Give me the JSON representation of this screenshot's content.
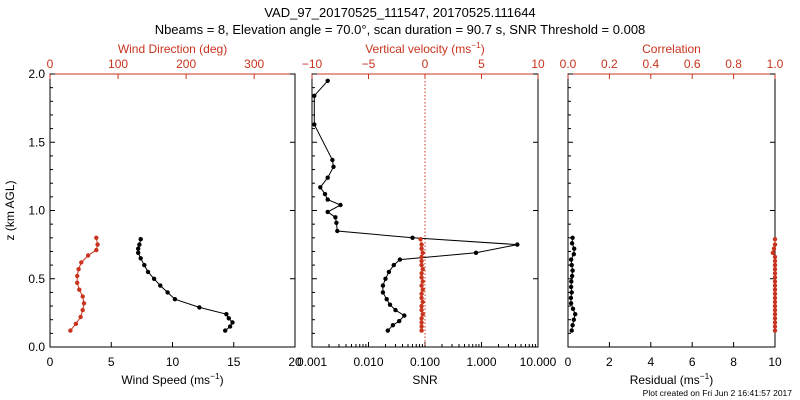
{
  "title_line1": "VAD_97_20170525_111547, 20170525.111644",
  "title_line2": "Nbeams = 8, Elevation angle = 70.0°, scan duration = 90.7 s, SNR Threshold = 0.008",
  "footer": "Plot created on Fri Jun  2 16:41:57 2017",
  "colors": {
    "primary": "#000000",
    "accent": "#c8341e"
  },
  "chart_data": [
    {
      "type": "line",
      "panel": "wind",
      "ylabel": "z (km AGL)",
      "ylim": [
        0,
        2
      ],
      "yticks": [
        "0.0",
        "0.5",
        "1.0",
        "1.5",
        "2.0"
      ],
      "bottom_axis": {
        "label": "Wind Speed",
        "unit": "(ms",
        "sup": "−1",
        "unit_close": ")",
        "lim": [
          0,
          20
        ],
        "ticks": [
          "0",
          "5",
          "10",
          "15",
          "20"
        ]
      },
      "top_axis": {
        "label": "Wind Direction (deg)",
        "lim": [
          0,
          360
        ],
        "ticks": [
          "0",
          "100",
          "200",
          "300"
        ]
      },
      "series": [
        {
          "axis": "bottom",
          "color": "#000000",
          "z": [
            0.12,
            0.15,
            0.18,
            0.21,
            0.24,
            0.29,
            0.35,
            0.4,
            0.45,
            0.5,
            0.55,
            0.6,
            0.65,
            0.69,
            0.72,
            0.75,
            0.79
          ],
          "values": [
            14.3,
            14.7,
            14.9,
            14.6,
            14.4,
            12.2,
            10.2,
            9.6,
            9.0,
            8.5,
            8.0,
            7.7,
            7.4,
            7.2,
            7.2,
            7.3,
            7.4
          ]
        },
        {
          "axis": "top",
          "color": "#c8341e",
          "z": [
            0.12,
            0.17,
            0.22,
            0.27,
            0.32,
            0.37,
            0.42,
            0.47,
            0.52,
            0.57,
            0.62,
            0.67,
            0.71,
            0.75,
            0.8
          ],
          "values": [
            30,
            38,
            45,
            48,
            50,
            48,
            43,
            40,
            40,
            42,
            46,
            56,
            68,
            70,
            68
          ]
        }
      ]
    },
    {
      "type": "line",
      "panel": "snr",
      "bottom_axis": {
        "label": "SNR",
        "scale": "log",
        "lim": [
          0.001,
          10
        ],
        "ticks": [
          "0.001",
          "0.010",
          "0.100",
          "1.000",
          "10.000"
        ]
      },
      "top_axis": {
        "label": "Vertical velocity (ms",
        "sup": "−1",
        "unit_close": ")",
        "lim": [
          -10,
          10
        ],
        "ticks": [
          "−10",
          "−5",
          "0",
          "5",
          "10"
        ]
      },
      "zero_line_top": 0,
      "series": [
        {
          "axis": "bottom",
          "color": "#000000",
          "z": [
            0.12,
            0.16,
            0.19,
            0.23,
            0.27,
            0.31,
            0.35,
            0.4,
            0.45,
            0.5,
            0.55,
            0.6,
            0.64,
            0.69,
            0.75,
            0.8,
            0.85,
            0.91,
            0.95,
            0.99,
            1.04,
            1.08,
            1.12,
            1.17,
            1.24,
            1.32,
            1.37,
            1.63,
            1.84,
            1.95
          ],
          "values": [
            0.022,
            0.027,
            0.035,
            0.043,
            0.03,
            0.024,
            0.021,
            0.018,
            0.018,
            0.02,
            0.023,
            0.028,
            0.036,
            0.8,
            4.3,
            0.06,
            0.0028,
            0.0027,
            0.0026,
            0.0019,
            0.0032,
            0.0019,
            0.0017,
            0.0014,
            0.0019,
            0.0024,
            0.0023,
            0.0011,
            0.0011,
            0.0019
          ]
        },
        {
          "axis": "top",
          "color": "#c8341e",
          "z": [
            0.12,
            0.15,
            0.18,
            0.21,
            0.24,
            0.27,
            0.3,
            0.33,
            0.36,
            0.39,
            0.42,
            0.45,
            0.48,
            0.51,
            0.54,
            0.57,
            0.6,
            0.63,
            0.66,
            0.69,
            0.72,
            0.75,
            0.79
          ],
          "values": [
            -0.3,
            -0.3,
            -0.3,
            -0.3,
            -0.2,
            -0.3,
            -0.3,
            -0.2,
            -0.3,
            -0.3,
            -0.2,
            -0.3,
            -0.2,
            -0.3,
            -0.3,
            -0.2,
            -0.3,
            -0.3,
            -0.3,
            -0.2,
            -0.3,
            -0.3,
            -0.4
          ]
        }
      ]
    },
    {
      "type": "line",
      "panel": "residual",
      "bottom_axis": {
        "label": "Residual",
        "unit": "(ms",
        "sup": "−1",
        "unit_close": ")",
        "lim": [
          0,
          10
        ],
        "ticks": [
          "0",
          "2",
          "4",
          "6",
          "8",
          "10"
        ]
      },
      "top_axis": {
        "label": "Correlation",
        "lim": [
          0,
          1
        ],
        "ticks": [
          "0.0",
          "0.2",
          "0.4",
          "0.6",
          "0.8",
          "1.0"
        ]
      },
      "series": [
        {
          "axis": "bottom",
          "color": "#000000",
          "z": [
            0.12,
            0.16,
            0.2,
            0.24,
            0.28,
            0.32,
            0.36,
            0.4,
            0.44,
            0.48,
            0.52,
            0.56,
            0.6,
            0.64,
            0.68,
            0.72,
            0.76,
            0.8
          ],
          "values": [
            0.18,
            0.22,
            0.28,
            0.35,
            0.24,
            0.15,
            0.14,
            0.18,
            0.15,
            0.16,
            0.2,
            0.22,
            0.18,
            0.15,
            0.28,
            0.3,
            0.2,
            0.22
          ]
        },
        {
          "axis": "top",
          "color": "#c8341e",
          "z": [
            0.12,
            0.15,
            0.18,
            0.21,
            0.24,
            0.27,
            0.3,
            0.33,
            0.36,
            0.39,
            0.42,
            0.45,
            0.48,
            0.51,
            0.54,
            0.57,
            0.6,
            0.63,
            0.66,
            0.69,
            0.72,
            0.75,
            0.79
          ],
          "values": [
            1.0,
            1.0,
            1.0,
            1.0,
            1.0,
            1.0,
            1.0,
            1.0,
            1.0,
            1.0,
            1.0,
            1.0,
            1.0,
            1.0,
            1.0,
            1.0,
            1.0,
            1.0,
            1.0,
            0.99,
            0.995,
            1.0,
            1.0
          ]
        }
      ]
    }
  ]
}
